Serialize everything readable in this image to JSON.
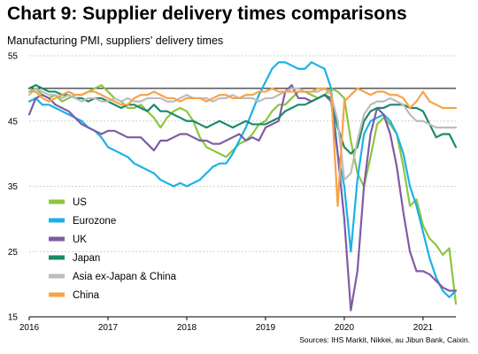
{
  "chart_data": {
    "type": "line",
    "title": "Chart 9: Supplier delivery times comparisons",
    "subtitle": "Manufacturing PMI, suppliers' delivery times",
    "source": "Sources: IHS Markit, Nikkei, au Jibun Bank, Caixin.",
    "y_ticks": [
      15,
      25,
      35,
      45,
      55
    ],
    "ylim": [
      15,
      55
    ],
    "x_ticks": [
      "2016",
      "2017",
      "2018",
      "2019",
      "2020",
      "2021"
    ],
    "xlim": [
      "2016-01",
      "2021-06"
    ],
    "reference_line": 50,
    "legend_placement": "bottom-left",
    "x_start": "2016-01",
    "series": [
      {
        "name": "US",
        "color": "#8cc63f",
        "values": [
          49.5,
          50.0,
          49.0,
          48.5,
          49.0,
          48.0,
          48.5,
          49.0,
          49.0,
          49.5,
          50.0,
          50.5,
          49.5,
          48.5,
          48.0,
          47.0,
          47.0,
          47.5,
          46.5,
          45.5,
          44.0,
          45.5,
          46.5,
          47.0,
          46.5,
          45.0,
          42.5,
          41.0,
          40.5,
          40.0,
          39.5,
          40.5,
          41.5,
          42.0,
          43.0,
          44.5,
          45.0,
          46.5,
          47.5,
          47.5,
          48.5,
          49.5,
          49.5,
          49.0,
          48.5,
          49.0,
          50.0,
          49.5,
          48.5,
          42.0,
          37.0,
          35.0,
          39.5,
          44.5,
          45.5,
          44.5,
          43.0,
          38.0,
          32.0,
          33.0,
          29.0,
          27.0,
          26.0,
          24.5,
          25.5,
          17.0
        ]
      },
      {
        "name": "Eurozone",
        "color": "#1bb1e7",
        "values": [
          48.0,
          48.5,
          47.5,
          47.5,
          47.0,
          46.5,
          46.0,
          45.5,
          45.0,
          44.0,
          43.5,
          42.5,
          41.0,
          40.5,
          40.0,
          39.5,
          38.5,
          38.0,
          37.5,
          37.0,
          36.0,
          35.5,
          35.0,
          35.5,
          35.0,
          35.5,
          36.0,
          37.0,
          38.0,
          38.5,
          38.5,
          40.0,
          42.0,
          44.0,
          46.5,
          49.0,
          51.0,
          53.0,
          54.0,
          54.0,
          53.5,
          53.0,
          53.0,
          54.0,
          53.5,
          53.0,
          50.0,
          40.0,
          35.0,
          25.0,
          36.0,
          43.0,
          45.0,
          45.5,
          46.0,
          45.0,
          43.0,
          40.0,
          35.0,
          32.0,
          28.0,
          24.0,
          21.0,
          19.0,
          18.0,
          19.0
        ]
      },
      {
        "name": "UK",
        "color": "#7f5ba6",
        "values": [
          46.0,
          48.5,
          49.0,
          48.5,
          47.5,
          47.0,
          46.5,
          45.5,
          44.5,
          44.0,
          43.5,
          43.0,
          43.5,
          43.5,
          43.0,
          42.5,
          42.5,
          42.5,
          41.5,
          40.5,
          42.0,
          42.0,
          42.5,
          43.0,
          43.0,
          42.5,
          42.0,
          42.0,
          41.5,
          41.5,
          42.0,
          42.5,
          43.0,
          42.0,
          42.5,
          42.0,
          44.0,
          44.5,
          45.0,
          49.5,
          50.5,
          48.5,
          48.5,
          48.0,
          48.5,
          49.0,
          48.0,
          40.0,
          30.0,
          16.0,
          22.0,
          35.0,
          43.0,
          47.0,
          46.0,
          43.0,
          38.0,
          31.0,
          25.0,
          22.0,
          22.0,
          21.5,
          20.5,
          19.5,
          19.0,
          19.0
        ]
      },
      {
        "name": "Japan",
        "color": "#1a8a6b",
        "values": [
          50.0,
          50.5,
          50.0,
          49.5,
          49.5,
          49.0,
          49.0,
          48.5,
          48.5,
          48.0,
          48.5,
          48.5,
          48.0,
          47.5,
          47.0,
          47.5,
          47.5,
          47.0,
          46.5,
          47.5,
          46.5,
          46.5,
          46.0,
          45.5,
          45.0,
          45.0,
          44.5,
          44.0,
          44.5,
          45.0,
          44.5,
          44.0,
          44.5,
          45.0,
          44.5,
          44.5,
          44.5,
          45.0,
          45.5,
          46.5,
          47.0,
          47.5,
          47.5,
          48.0,
          48.5,
          49.0,
          48.5,
          44.0,
          41.0,
          40.0,
          41.0,
          45.0,
          46.5,
          47.0,
          47.0,
          47.5,
          47.5,
          47.5,
          47.0,
          47.0,
          46.5,
          44.5,
          42.5,
          43.0,
          43.0,
          41.0
        ]
      },
      {
        "name": "Asia ex-Japan & China",
        "color": "#bcbcbc",
        "values": [
          49.0,
          50.0,
          49.5,
          49.0,
          49.0,
          48.5,
          49.0,
          48.5,
          48.0,
          48.5,
          48.5,
          48.0,
          48.0,
          48.5,
          48.0,
          48.5,
          48.0,
          48.0,
          48.5,
          48.5,
          48.5,
          48.0,
          48.0,
          48.5,
          49.0,
          48.5,
          48.5,
          48.5,
          48.0,
          48.5,
          48.5,
          49.0,
          48.5,
          48.5,
          48.5,
          48.0,
          48.5,
          48.5,
          49.0,
          49.5,
          50.0,
          50.0,
          49.5,
          49.5,
          49.5,
          50.0,
          49.0,
          45.0,
          36.0,
          37.0,
          42.0,
          46.0,
          47.5,
          48.0,
          48.0,
          48.5,
          48.0,
          47.5,
          46.0,
          45.0,
          45.0,
          44.5,
          44.0,
          44.0,
          44.0,
          44.0
        ]
      },
      {
        "name": "China",
        "color": "#f7a24a",
        "values": [
          49.5,
          49.5,
          48.5,
          48.0,
          48.5,
          49.0,
          49.5,
          49.0,
          49.0,
          49.5,
          49.5,
          49.0,
          48.5,
          48.0,
          47.5,
          47.5,
          48.5,
          49.0,
          49.0,
          49.5,
          49.0,
          48.5,
          48.5,
          48.0,
          48.5,
          48.5,
          48.5,
          48.0,
          48.5,
          49.0,
          49.0,
          48.5,
          48.5,
          49.0,
          49.0,
          49.5,
          49.5,
          50.0,
          49.5,
          49.5,
          49.5,
          49.5,
          49.5,
          49.5,
          50.0,
          50.0,
          49.5,
          32.0,
          48.0,
          49.0,
          50.0,
          49.5,
          49.0,
          49.5,
          49.5,
          49.0,
          49.0,
          48.5,
          47.0,
          48.0,
          49.5,
          48.0,
          47.5,
          47.0,
          47.0,
          47.0
        ]
      }
    ]
  }
}
